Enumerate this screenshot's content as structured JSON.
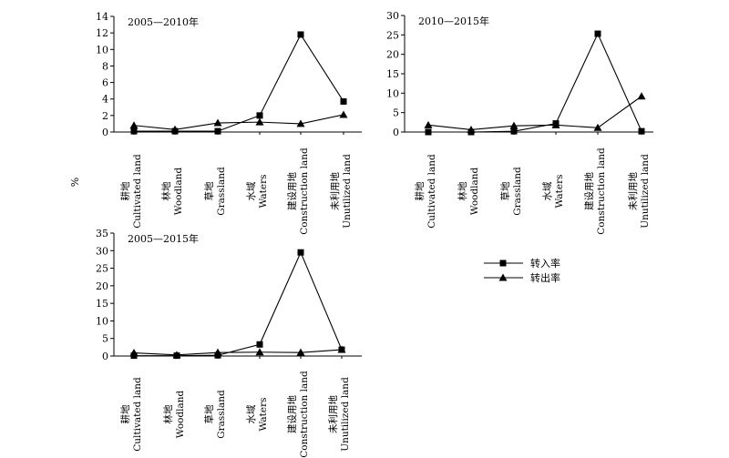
{
  "y_axis_label": "%",
  "legend": [
    {
      "name": "转入率",
      "marker": "square"
    },
    {
      "name": "转出率",
      "marker": "triangle"
    }
  ],
  "categories": [
    [
      "耕地",
      "Cultivated land"
    ],
    [
      "林地",
      "Woodland"
    ],
    [
      "草地",
      "Grassland"
    ],
    [
      "水域",
      "Waters"
    ],
    [
      "建设用地",
      "Construction land"
    ],
    [
      "未利用地",
      "Unutilized land"
    ]
  ],
  "chart_data": [
    {
      "type": "line",
      "title": "2005—2010年",
      "categories": [
        "耕地 Cultivated land",
        "林地 Woodland",
        "草地 Grassland",
        "水域 Waters",
        "建设用地 Construction land",
        "未利用地 Unutilized land"
      ],
      "ylim": [
        0,
        14
      ],
      "yticks": [
        0,
        2,
        4,
        6,
        8,
        10,
        12,
        14
      ],
      "ylabel": "%",
      "series": [
        {
          "name": "转入率",
          "marker": "square",
          "values": [
            0.1,
            0.1,
            0.1,
            2.0,
            11.8,
            3.7
          ]
        },
        {
          "name": "转出率",
          "marker": "triangle",
          "values": [
            0.8,
            0.3,
            1.1,
            1.2,
            1.0,
            2.1
          ]
        }
      ]
    },
    {
      "type": "line",
      "title": "2010—2015年",
      "categories": [
        "耕地 Cultivated land",
        "林地 Woodland",
        "草地 Grassland",
        "水域 Waters",
        "建设用地 Construction land",
        "未利用地 Unutilized land"
      ],
      "ylim": [
        0,
        30
      ],
      "yticks": [
        0,
        5,
        10,
        15,
        20,
        25,
        30
      ],
      "series": [
        {
          "name": "转入率",
          "marker": "square",
          "values": [
            0,
            0,
            0.2,
            2.2,
            25.3,
            0.2
          ]
        },
        {
          "name": "转出率",
          "marker": "triangle",
          "values": [
            1.8,
            0.6,
            1.6,
            1.8,
            1.1,
            9.2
          ]
        }
      ]
    },
    {
      "type": "line",
      "title": "2005—2015年",
      "categories": [
        "耕地 Cultivated land",
        "林地 Woodland",
        "草地 Grassland",
        "水域 Waters",
        "建设用地 Construction land",
        "未利用地 Unutilized land"
      ],
      "ylim": [
        0,
        35
      ],
      "yticks": [
        0,
        5,
        10,
        15,
        20,
        25,
        30,
        35
      ],
      "series": [
        {
          "name": "转入率",
          "marker": "square",
          "values": [
            0.1,
            0.1,
            0.2,
            3.3,
            29.5,
            1.8
          ]
        },
        {
          "name": "转出率",
          "marker": "triangle",
          "values": [
            0.9,
            0.3,
            1.0,
            1.1,
            1.0,
            1.8
          ]
        }
      ]
    }
  ]
}
